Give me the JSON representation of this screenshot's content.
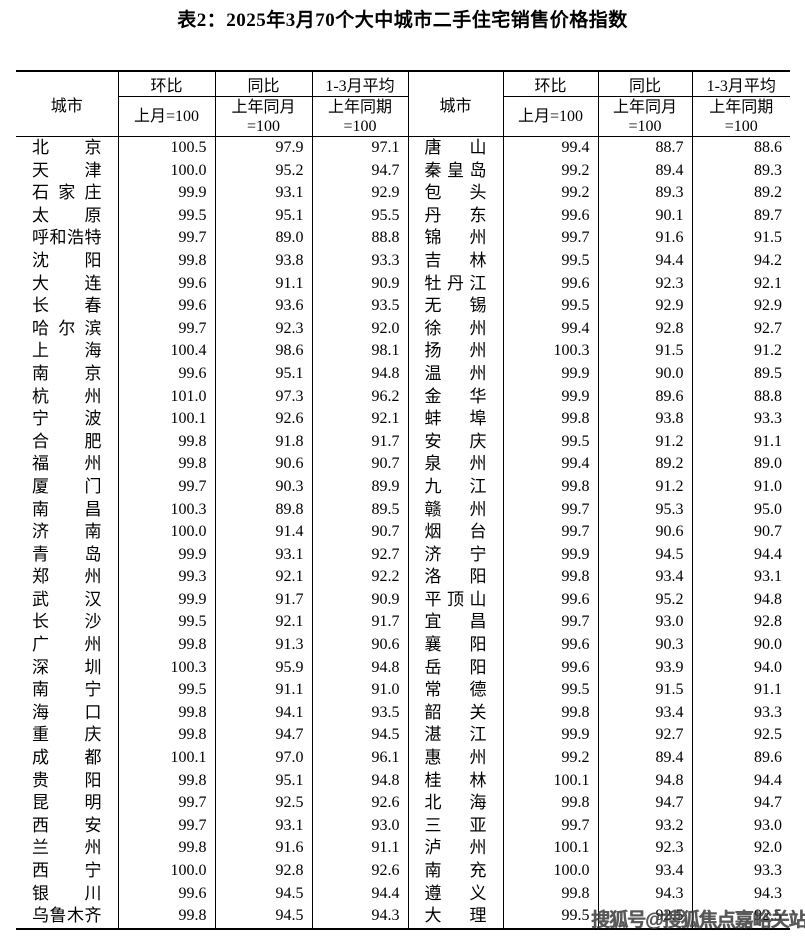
{
  "title": "表2：2025年3月70个大中城市二手住宅销售价格指数",
  "colors": {
    "text": "#000000",
    "border": "#000000",
    "watermark": "#3c3c3c",
    "background": "#ffffff"
  },
  "watermark": "搜狐号@搜狐焦点嘉峪关站",
  "table": {
    "header": {
      "city": "城市",
      "col1": "环比",
      "col2": "同比",
      "col3": "1-3月平均",
      "sub1": "上月=100",
      "sub2": "上年同月\n=100",
      "sub3": "上年同期\n=100"
    },
    "rows": [
      {
        "lc": "北京",
        "l1": "100.5",
        "l2": "97.9",
        "l3": "97.1",
        "rc": "唐山",
        "r1": "99.4",
        "r2": "88.7",
        "r3": "88.6"
      },
      {
        "lc": "天津",
        "l1": "100.0",
        "l2": "95.2",
        "l3": "94.7",
        "rc": "秦皇岛",
        "r1": "99.2",
        "r2": "89.4",
        "r3": "89.3"
      },
      {
        "lc": "石家庄",
        "l1": "99.9",
        "l2": "93.1",
        "l3": "92.9",
        "rc": "包头",
        "r1": "99.2",
        "r2": "89.3",
        "r3": "89.2"
      },
      {
        "lc": "太原",
        "l1": "99.5",
        "l2": "95.1",
        "l3": "95.5",
        "rc": "丹东",
        "r1": "99.6",
        "r2": "90.1",
        "r3": "89.7"
      },
      {
        "lc": "呼和浩特",
        "l1": "99.7",
        "l2": "89.0",
        "l3": "88.8",
        "rc": "锦州",
        "r1": "99.7",
        "r2": "91.6",
        "r3": "91.5"
      },
      {
        "lc": "沈阳",
        "l1": "99.8",
        "l2": "93.8",
        "l3": "93.3",
        "rc": "吉林",
        "r1": "99.5",
        "r2": "94.4",
        "r3": "94.2"
      },
      {
        "lc": "大连",
        "l1": "99.6",
        "l2": "91.1",
        "l3": "90.9",
        "rc": "牡丹江",
        "r1": "99.6",
        "r2": "92.3",
        "r3": "92.1"
      },
      {
        "lc": "长春",
        "l1": "99.6",
        "l2": "93.6",
        "l3": "93.5",
        "rc": "无锡",
        "r1": "99.5",
        "r2": "92.9",
        "r3": "92.9"
      },
      {
        "lc": "哈尔滨",
        "l1": "99.7",
        "l2": "92.3",
        "l3": "92.0",
        "rc": "徐州",
        "r1": "99.4",
        "r2": "92.8",
        "r3": "92.7"
      },
      {
        "lc": "上海",
        "l1": "100.4",
        "l2": "98.6",
        "l3": "98.1",
        "rc": "扬州",
        "r1": "100.3",
        "r2": "91.5",
        "r3": "91.2"
      },
      {
        "lc": "南京",
        "l1": "99.6",
        "l2": "95.1",
        "l3": "94.8",
        "rc": "温州",
        "r1": "99.9",
        "r2": "90.0",
        "r3": "89.5"
      },
      {
        "lc": "杭州",
        "l1": "101.0",
        "l2": "97.3",
        "l3": "96.2",
        "rc": "金华",
        "r1": "99.9",
        "r2": "89.6",
        "r3": "88.8"
      },
      {
        "lc": "宁波",
        "l1": "100.1",
        "l2": "92.6",
        "l3": "92.1",
        "rc": "蚌埠",
        "r1": "99.8",
        "r2": "93.8",
        "r3": "93.3"
      },
      {
        "lc": "合肥",
        "l1": "99.8",
        "l2": "91.8",
        "l3": "91.7",
        "rc": "安庆",
        "r1": "99.5",
        "r2": "91.2",
        "r3": "91.1"
      },
      {
        "lc": "福州",
        "l1": "99.8",
        "l2": "90.6",
        "l3": "90.7",
        "rc": "泉州",
        "r1": "99.4",
        "r2": "89.2",
        "r3": "89.0"
      },
      {
        "lc": "厦门",
        "l1": "99.7",
        "l2": "90.3",
        "l3": "89.9",
        "rc": "九江",
        "r1": "99.8",
        "r2": "91.2",
        "r3": "91.0"
      },
      {
        "lc": "南昌",
        "l1": "100.3",
        "l2": "89.8",
        "l3": "89.5",
        "rc": "赣州",
        "r1": "99.7",
        "r2": "95.3",
        "r3": "95.0"
      },
      {
        "lc": "济南",
        "l1": "100.0",
        "l2": "91.4",
        "l3": "90.7",
        "rc": "烟台",
        "r1": "99.7",
        "r2": "90.6",
        "r3": "90.7"
      },
      {
        "lc": "青岛",
        "l1": "99.9",
        "l2": "93.1",
        "l3": "92.7",
        "rc": "济宁",
        "r1": "99.9",
        "r2": "94.5",
        "r3": "94.4"
      },
      {
        "lc": "郑州",
        "l1": "99.3",
        "l2": "92.1",
        "l3": "92.2",
        "rc": "洛阳",
        "r1": "99.8",
        "r2": "93.4",
        "r3": "93.1"
      },
      {
        "lc": "武汉",
        "l1": "99.9",
        "l2": "91.7",
        "l3": "90.9",
        "rc": "平顶山",
        "r1": "99.6",
        "r2": "95.2",
        "r3": "94.8"
      },
      {
        "lc": "长沙",
        "l1": "99.5",
        "l2": "92.1",
        "l3": "91.7",
        "rc": "宜昌",
        "r1": "99.7",
        "r2": "93.0",
        "r3": "92.8"
      },
      {
        "lc": "广州",
        "l1": "99.8",
        "l2": "91.3",
        "l3": "90.6",
        "rc": "襄阳",
        "r1": "99.6",
        "r2": "90.3",
        "r3": "90.0"
      },
      {
        "lc": "深圳",
        "l1": "100.3",
        "l2": "95.9",
        "l3": "94.8",
        "rc": "岳阳",
        "r1": "99.6",
        "r2": "93.9",
        "r3": "94.0"
      },
      {
        "lc": "南宁",
        "l1": "99.5",
        "l2": "91.1",
        "l3": "91.0",
        "rc": "常德",
        "r1": "99.5",
        "r2": "91.5",
        "r3": "91.1"
      },
      {
        "lc": "海口",
        "l1": "99.8",
        "l2": "94.1",
        "l3": "93.5",
        "rc": "韶关",
        "r1": "99.8",
        "r2": "93.4",
        "r3": "93.3"
      },
      {
        "lc": "重庆",
        "l1": "99.8",
        "l2": "94.7",
        "l3": "94.5",
        "rc": "湛江",
        "r1": "99.9",
        "r2": "92.7",
        "r3": "92.5"
      },
      {
        "lc": "成都",
        "l1": "100.1",
        "l2": "97.0",
        "l3": "96.1",
        "rc": "惠州",
        "r1": "99.2",
        "r2": "89.4",
        "r3": "89.6"
      },
      {
        "lc": "贵阳",
        "l1": "99.8",
        "l2": "95.1",
        "l3": "94.8",
        "rc": "桂林",
        "r1": "100.1",
        "r2": "94.8",
        "r3": "94.4"
      },
      {
        "lc": "昆明",
        "l1": "99.7",
        "l2": "92.5",
        "l3": "92.6",
        "rc": "北海",
        "r1": "99.8",
        "r2": "94.7",
        "r3": "94.7"
      },
      {
        "lc": "西安",
        "l1": "99.7",
        "l2": "93.1",
        "l3": "93.0",
        "rc": "三亚",
        "r1": "99.7",
        "r2": "93.2",
        "r3": "93.0"
      },
      {
        "lc": "兰州",
        "l1": "99.8",
        "l2": "91.6",
        "l3": "91.1",
        "rc": "泸州",
        "r1": "100.1",
        "r2": "92.3",
        "r3": "92.0"
      },
      {
        "lc": "西宁",
        "l1": "100.0",
        "l2": "92.8",
        "l3": "92.6",
        "rc": "南充",
        "r1": "100.0",
        "r2": "93.4",
        "r3": "93.3"
      },
      {
        "lc": "银川",
        "l1": "99.6",
        "l2": "94.5",
        "l3": "94.4",
        "rc": "遵义",
        "r1": "99.8",
        "r2": "94.3",
        "r3": "94.3"
      },
      {
        "lc": "乌鲁木齐",
        "l1": "99.8",
        "l2": "94.5",
        "l3": "94.3",
        "rc": "大理",
        "r1": "99.5",
        "r2": "92.5",
        "r3": "92.5"
      }
    ]
  }
}
